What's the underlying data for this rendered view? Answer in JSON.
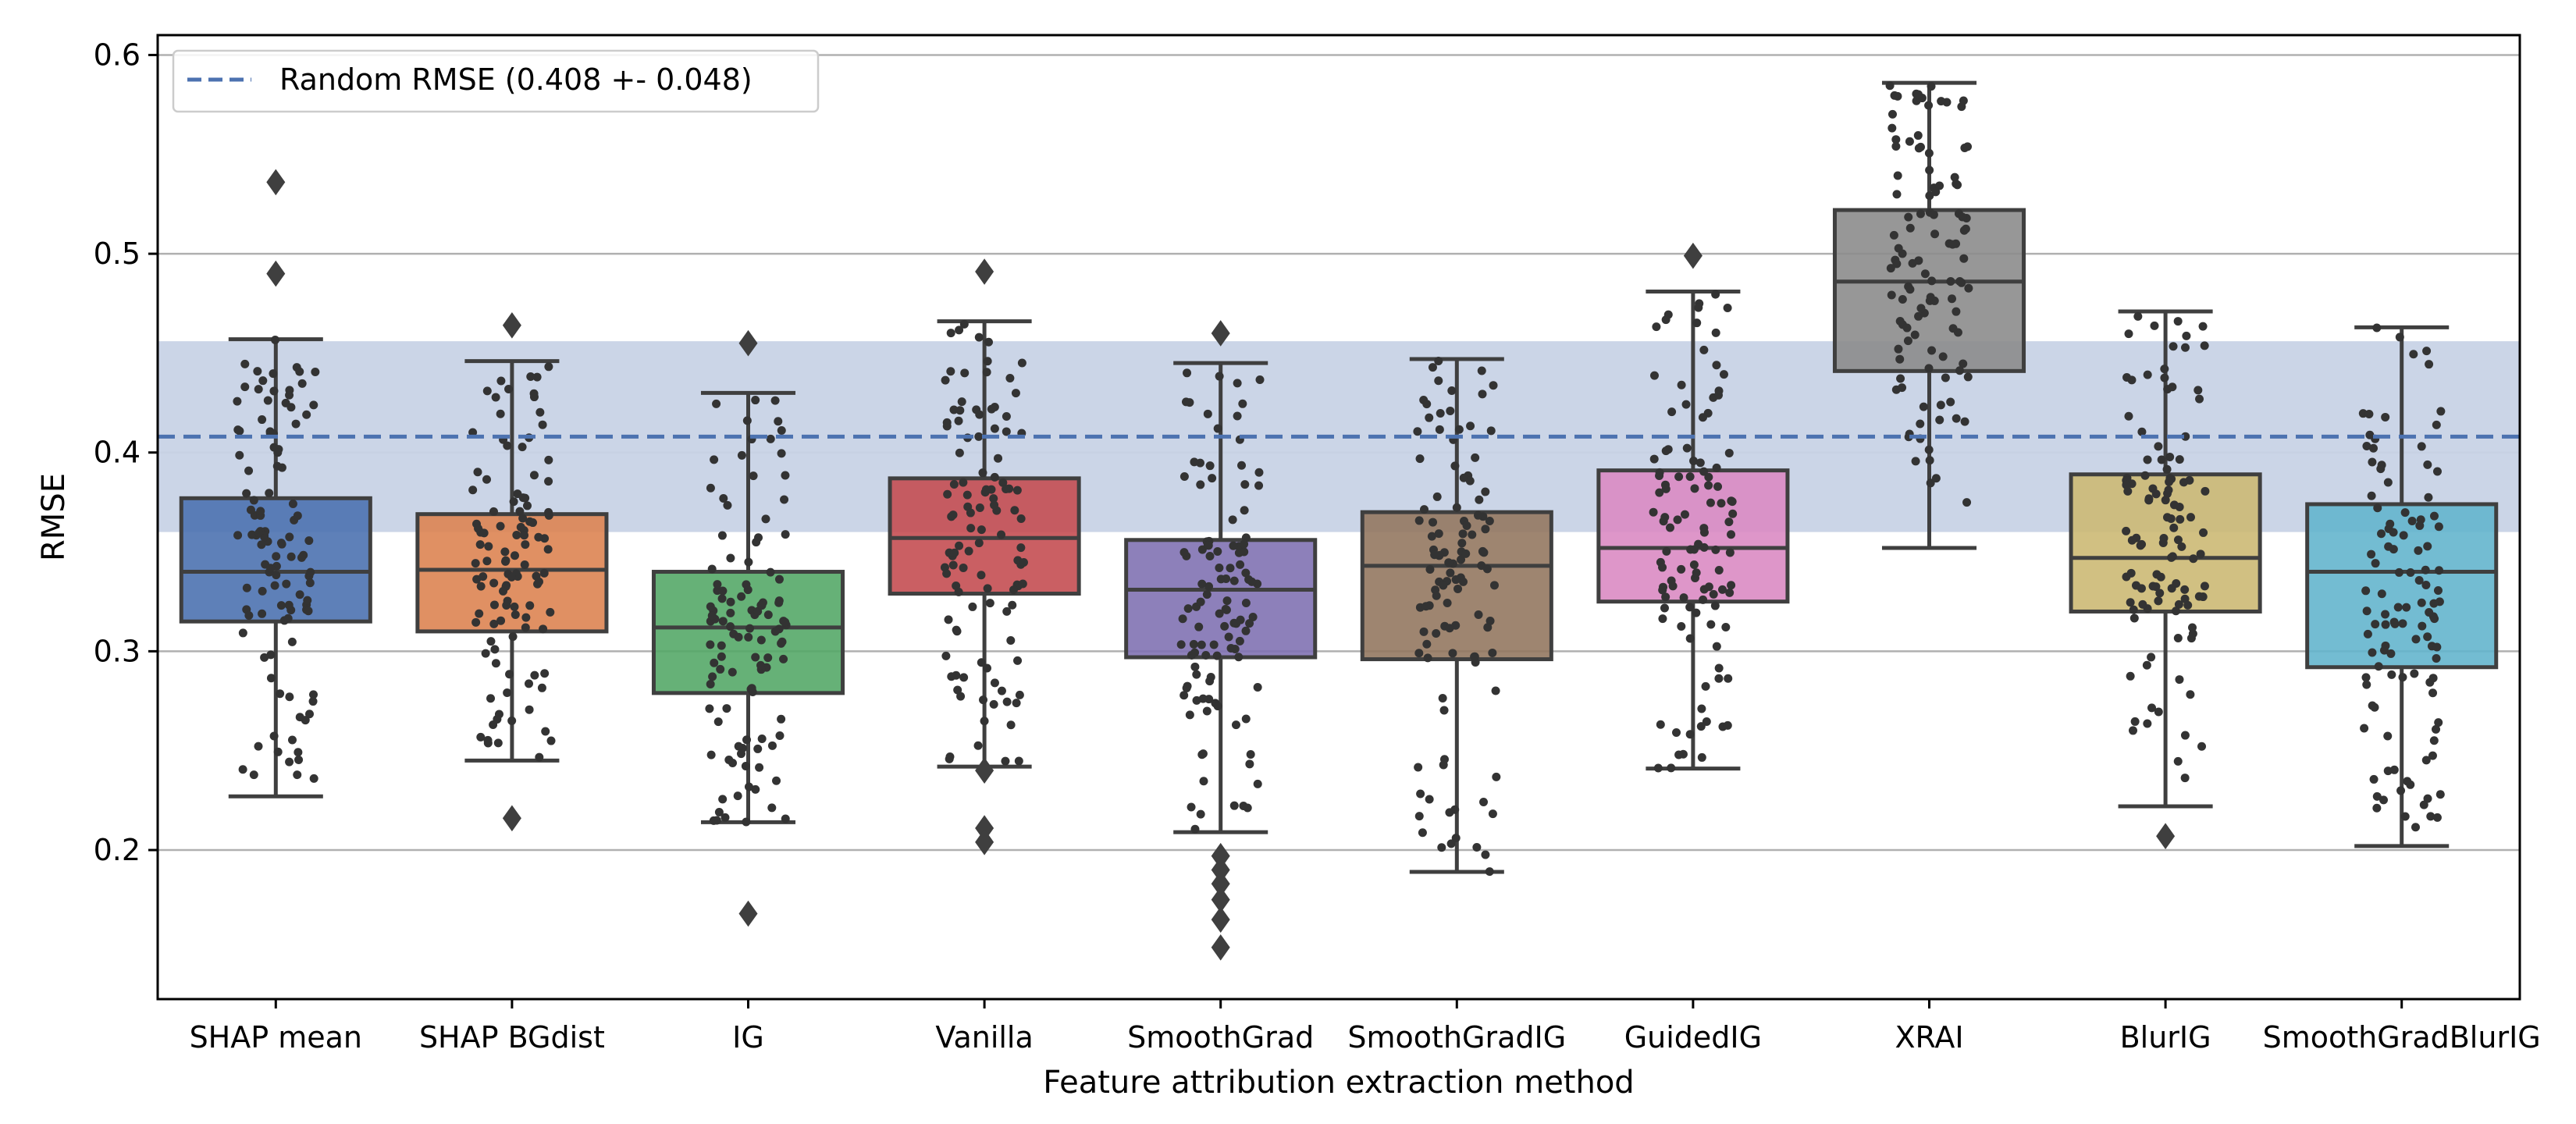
{
  "chart_data": {
    "type": "boxplot",
    "xlabel": "Feature attribution extraction method",
    "ylabel": "RMSE",
    "ylim": [
      0.125,
      0.61
    ],
    "yticks": [
      0.2,
      0.3,
      0.4,
      0.5,
      0.6
    ],
    "ytick_labels": [
      "0.2",
      "0.3",
      "0.4",
      "0.5",
      "0.6"
    ],
    "grid": "horizontal",
    "legend_position": "top-left",
    "reference": {
      "label": "Random RMSE (0.408 +- 0.048)",
      "mean": 0.408,
      "std": 0.048,
      "color": "#4c72b0",
      "band_color": "#c8d3e6"
    },
    "boxes": [
      {
        "name": "SHAP mean",
        "color": "#4c72b0",
        "whisker_low": 0.227,
        "q1": 0.315,
        "median": 0.34,
        "q3": 0.377,
        "whisker_high": 0.457,
        "outliers": [
          0.536,
          0.49
        ]
      },
      {
        "name": "SHAP BGdist",
        "color": "#dd8452",
        "whisker_low": 0.245,
        "q1": 0.31,
        "median": 0.341,
        "q3": 0.369,
        "whisker_high": 0.446,
        "outliers": [
          0.464,
          0.216
        ]
      },
      {
        "name": "IG",
        "color": "#55a868",
        "whisker_low": 0.214,
        "q1": 0.279,
        "median": 0.312,
        "q3": 0.34,
        "whisker_high": 0.43,
        "outliers": [
          0.455,
          0.168
        ]
      },
      {
        "name": "Vanilla",
        "color": "#c44e52",
        "whisker_low": 0.242,
        "q1": 0.329,
        "median": 0.357,
        "q3": 0.387,
        "whisker_high": 0.466,
        "outliers": [
          0.491,
          0.24,
          0.211,
          0.204
        ]
      },
      {
        "name": "SmoothGrad",
        "color": "#8172b3",
        "whisker_low": 0.209,
        "q1": 0.297,
        "median": 0.331,
        "q3": 0.356,
        "whisker_high": 0.445,
        "outliers": [
          0.46,
          0.197,
          0.19,
          0.183,
          0.175,
          0.165,
          0.151
        ]
      },
      {
        "name": "SmoothGradIG",
        "color": "#937860",
        "whisker_low": 0.189,
        "q1": 0.296,
        "median": 0.343,
        "q3": 0.37,
        "whisker_high": 0.447,
        "outliers": []
      },
      {
        "name": "GuidedIG",
        "color": "#da8bc3",
        "whisker_low": 0.241,
        "q1": 0.325,
        "median": 0.352,
        "q3": 0.391,
        "whisker_high": 0.481,
        "outliers": [
          0.499
        ]
      },
      {
        "name": "XRAI",
        "color": "#8c8c8c",
        "whisker_low": 0.352,
        "q1": 0.441,
        "median": 0.486,
        "q3": 0.522,
        "whisker_high": 0.586,
        "outliers": []
      },
      {
        "name": "BlurIG",
        "color": "#ccb974",
        "whisker_low": 0.222,
        "q1": 0.32,
        "median": 0.347,
        "q3": 0.389,
        "whisker_high": 0.471,
        "outliers": [
          0.207
        ]
      },
      {
        "name": "SmoothGradBlurIG",
        "color": "#64b5cd",
        "whisker_low": 0.202,
        "q1": 0.292,
        "median": 0.34,
        "q3": 0.374,
        "whisker_high": 0.463,
        "outliers": []
      }
    ]
  }
}
